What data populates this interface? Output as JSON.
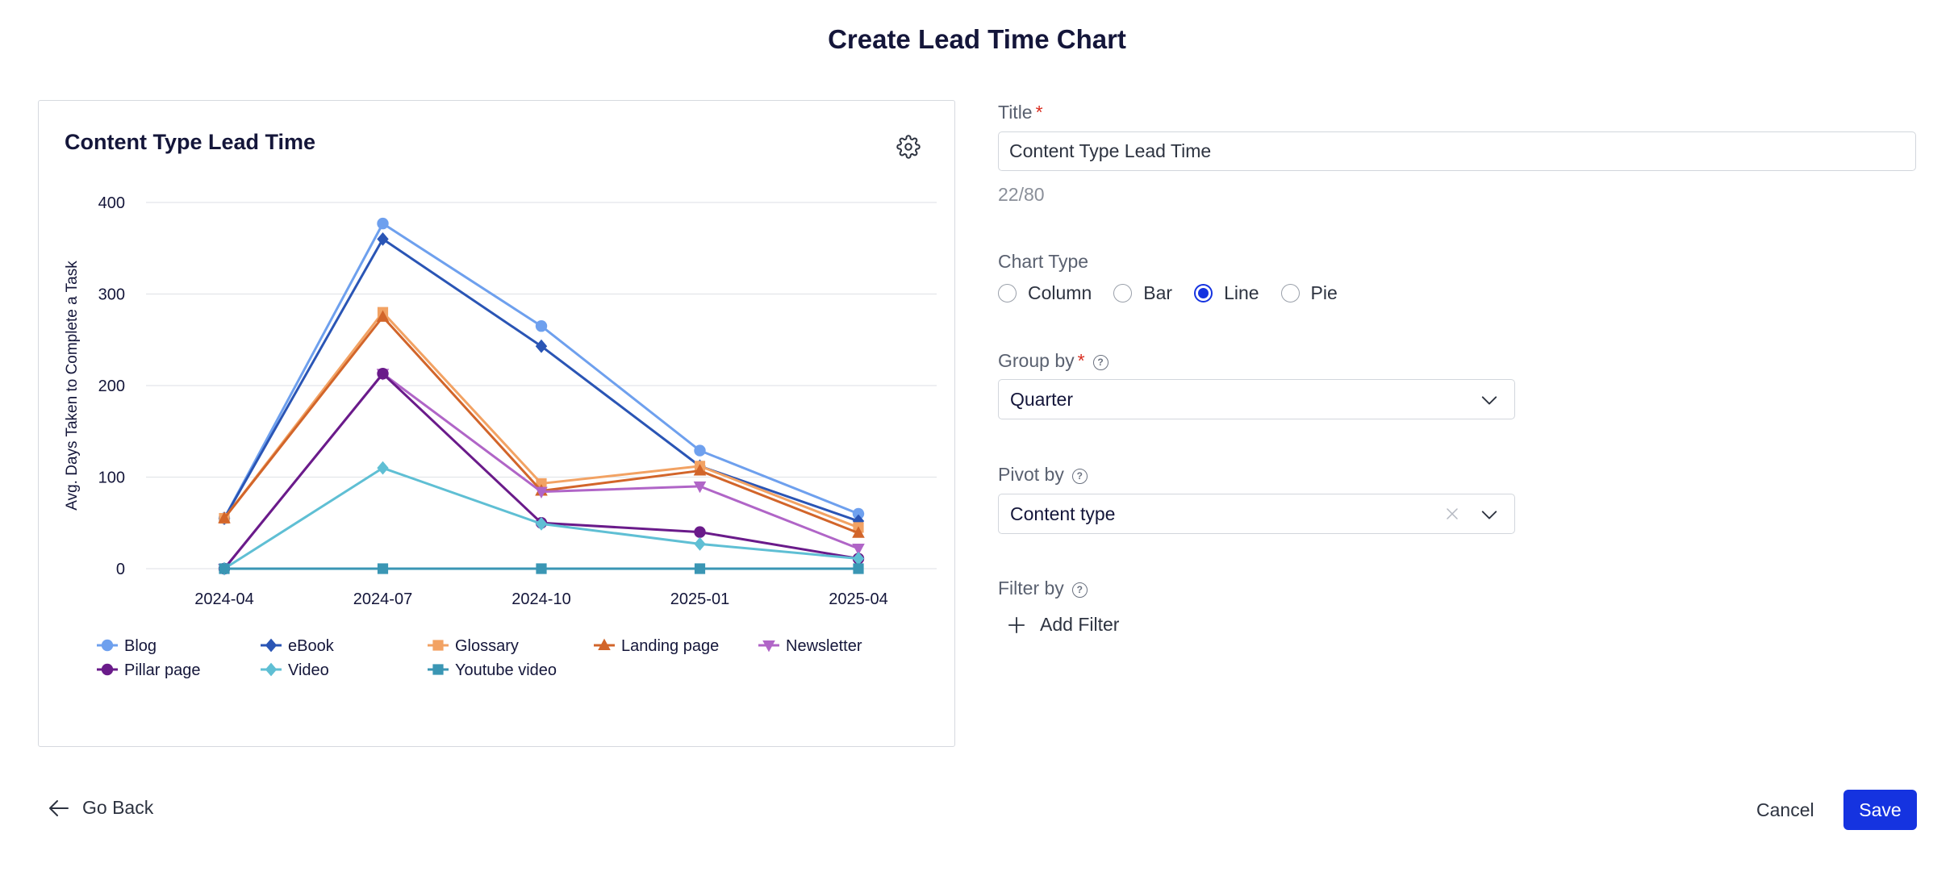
{
  "page_title": "Create Lead Time Chart",
  "chart_card": {
    "title": "Content Type Lead Time",
    "settings_icon": "gear-icon"
  },
  "form": {
    "title_label": "Title",
    "title_value": "Content Type Lead Time",
    "title_counter": "22/80",
    "chart_type_label": "Chart Type",
    "chart_types": [
      "Column",
      "Bar",
      "Line",
      "Pie"
    ],
    "chart_type_selected": "Line",
    "group_by_label": "Group by",
    "group_by_value": "Quarter",
    "pivot_by_label": "Pivot by",
    "pivot_by_value": "Content type",
    "filter_by_label": "Filter by",
    "add_filter_label": "Add Filter",
    "required_mark": "*",
    "help_glyph": "?"
  },
  "footer": {
    "go_back": "Go Back",
    "cancel": "Cancel",
    "save": "Save"
  },
  "colors": {
    "primary": "#1533e0",
    "required": "#d92d20"
  },
  "chart_data": {
    "type": "line",
    "title": "Content Type Lead Time",
    "xlabel": "",
    "ylabel": "Avg. Days Taken to Complete a Task",
    "categories": [
      "2024-04",
      "2024-07",
      "2024-10",
      "2025-01",
      "2025-04"
    ],
    "ylim": [
      0,
      400
    ],
    "yticks": [
      0,
      100,
      200,
      300,
      400
    ],
    "grid": true,
    "legend": "bottom",
    "series": [
      {
        "name": "Blog",
        "color": "#6ea0ee",
        "marker": "circle",
        "values": [
          55,
          377,
          265,
          129,
          60
        ]
      },
      {
        "name": "eBook",
        "color": "#2a55b5",
        "marker": "diamond",
        "values": [
          55,
          360,
          243,
          112,
          52
        ]
      },
      {
        "name": "Glossary",
        "color": "#f2a263",
        "marker": "square",
        "values": [
          55,
          280,
          93,
          112,
          45
        ]
      },
      {
        "name": "Landing page",
        "color": "#d2652a",
        "marker": "triangle-up",
        "values": [
          55,
          275,
          85,
          107,
          39
        ]
      },
      {
        "name": "Newsletter",
        "color": "#b065c7",
        "marker": "triangle-down",
        "values": [
          0,
          213,
          84,
          90,
          22
        ]
      },
      {
        "name": "Pillar page",
        "color": "#6a1b8a",
        "marker": "circle",
        "values": [
          0,
          213,
          50,
          40,
          11
        ]
      },
      {
        "name": "Video",
        "color": "#5fbfd4",
        "marker": "diamond",
        "values": [
          0,
          110,
          49,
          27,
          11
        ]
      },
      {
        "name": "Youtube video",
        "color": "#3a96b4",
        "marker": "square",
        "values": [
          0,
          0,
          0,
          0,
          0
        ]
      }
    ]
  }
}
